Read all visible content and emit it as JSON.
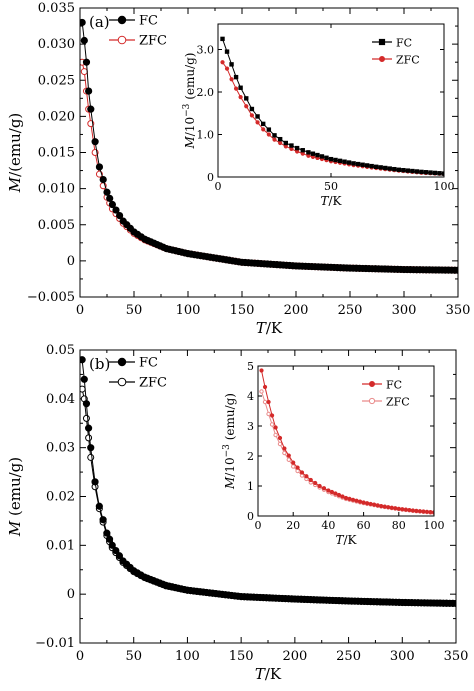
{
  "chart_data": [
    {
      "id": "a-main",
      "type": "scatter",
      "panel_label": "(a)",
      "xlabel": "T/K",
      "ylabel": "M/(emu/g)",
      "xlim": [
        0,
        350
      ],
      "ylim": [
        -0.005,
        0.035
      ],
      "xticks": [
        0,
        50,
        100,
        150,
        200,
        250,
        300,
        350
      ],
      "yticks": [
        -0.005,
        0,
        0.005,
        0.01,
        0.015,
        0.02,
        0.025,
        0.03,
        0.035
      ],
      "xtick_labels": [
        "0",
        "50",
        "100",
        "150",
        "200",
        "250",
        "300",
        "350"
      ],
      "ytick_labels": [
        "−0.005",
        "0",
        "0.005",
        "0.010",
        "0.015",
        "0.020",
        "0.025",
        "0.030",
        "0.035"
      ],
      "legend_position": "top-left",
      "series": [
        {
          "name": "FC",
          "color": "#000000",
          "marker": "filled-circle",
          "x": [
            2,
            4,
            6,
            8,
            10,
            14,
            18,
            25,
            30,
            40,
            50,
            60,
            80,
            100,
            150,
            200,
            250,
            300,
            350
          ],
          "y": [
            0.033,
            0.0305,
            0.0275,
            0.0235,
            0.021,
            0.0165,
            0.013,
            0.0095,
            0.0078,
            0.0055,
            0.004,
            0.003,
            0.0017,
            0.001,
            -0.0002,
            -0.0007,
            -0.001,
            -0.0012,
            -0.0013
          ]
        },
        {
          "name": "ZFC",
          "color": "#d42a2a",
          "marker": "open-circle",
          "x": [
            2,
            4,
            6,
            8,
            10,
            14,
            18,
            25,
            30,
            40,
            50,
            60,
            80,
            100,
            150,
            200,
            250,
            300,
            350
          ],
          "y": [
            0.0275,
            0.0262,
            0.0235,
            0.021,
            0.019,
            0.015,
            0.012,
            0.0088,
            0.0072,
            0.0052,
            0.0038,
            0.0029,
            0.0017,
            0.001,
            -0.0002,
            -0.0007,
            -0.001,
            -0.0012,
            -0.0013
          ]
        }
      ]
    },
    {
      "id": "a-inset",
      "type": "line",
      "xlabel": "T/K",
      "ylabel": "M/10⁻³ (emu/g)",
      "xlim": [
        0,
        100
      ],
      "ylim": [
        0,
        3.6
      ],
      "xticks": [
        0,
        50,
        100
      ],
      "yticks": [
        0,
        1,
        2,
        3
      ],
      "xtick_labels": [
        "0",
        "50",
        "100"
      ],
      "ytick_labels": [
        "0",
        "1.0",
        "2.0",
        "3.0"
      ],
      "legend_position": "top-right",
      "series": [
        {
          "name": "FC",
          "color": "#000000",
          "marker": "square",
          "x": [
            2,
            4,
            6,
            8,
            10,
            15,
            20,
            25,
            30,
            35,
            40,
            50,
            60,
            70,
            80,
            90,
            100
          ],
          "y": [
            3.25,
            2.95,
            2.65,
            2.35,
            2.1,
            1.6,
            1.25,
            0.98,
            0.8,
            0.68,
            0.58,
            0.42,
            0.32,
            0.24,
            0.17,
            0.12,
            0.08
          ]
        },
        {
          "name": "ZFC",
          "color": "#d42a2a",
          "marker": "filled-circle",
          "x": [
            2,
            4,
            6,
            8,
            10,
            15,
            20,
            25,
            30,
            35,
            40,
            50,
            60,
            70,
            80,
            90,
            100
          ],
          "y": [
            2.7,
            2.55,
            2.3,
            2.08,
            1.88,
            1.45,
            1.12,
            0.88,
            0.72,
            0.6,
            0.5,
            0.37,
            0.28,
            0.21,
            0.15,
            0.1,
            0.07
          ]
        }
      ]
    },
    {
      "id": "b-main",
      "type": "scatter",
      "panel_label": "(b)",
      "xlabel": "T/K",
      "ylabel": "M (emu/g)",
      "xlim": [
        0,
        350
      ],
      "ylim": [
        -0.01,
        0.05
      ],
      "xticks": [
        0,
        50,
        100,
        150,
        200,
        250,
        300,
        350
      ],
      "yticks": [
        -0.01,
        0,
        0.01,
        0.02,
        0.03,
        0.04,
        0.05
      ],
      "xtick_labels": [
        "0",
        "50",
        "100",
        "150",
        "200",
        "250",
        "300",
        "350"
      ],
      "ytick_labels": [
        "−0.01",
        "0",
        "0.01",
        "0.02",
        "0.03",
        "0.04",
        "0.05"
      ],
      "legend_position": "top-left",
      "series": [
        {
          "name": "FC",
          "color": "#000000",
          "marker": "filled-circle",
          "x": [
            2,
            4,
            6,
            8,
            10,
            14,
            18,
            25,
            30,
            40,
            50,
            60,
            80,
            100,
            150,
            200,
            250,
            300,
            350
          ],
          "y": [
            0.048,
            0.044,
            0.039,
            0.034,
            0.03,
            0.023,
            0.018,
            0.0125,
            0.01,
            0.0068,
            0.0048,
            0.0035,
            0.0018,
            0.0008,
            -0.0005,
            -0.001,
            -0.0014,
            -0.0017,
            -0.0019
          ]
        },
        {
          "name": "ZFC",
          "color": "#000000",
          "marker": "open-circle",
          "x": [
            2,
            4,
            6,
            8,
            10,
            14,
            18,
            25,
            30,
            40,
            50,
            60,
            80,
            100,
            150,
            200,
            250,
            300,
            350
          ],
          "y": [
            0.042,
            0.04,
            0.036,
            0.032,
            0.028,
            0.022,
            0.0175,
            0.012,
            0.0095,
            0.0065,
            0.0046,
            0.0034,
            0.0017,
            0.0008,
            -0.0005,
            -0.001,
            -0.0014,
            -0.0017,
            -0.0019
          ]
        }
      ]
    },
    {
      "id": "b-inset",
      "type": "line",
      "xlabel": "T/K",
      "ylabel": "M/10⁻³ (emu/g)",
      "xlim": [
        0,
        100
      ],
      "ylim": [
        0,
        5
      ],
      "xticks": [
        0,
        20,
        40,
        60,
        80,
        100
      ],
      "yticks": [
        0,
        1,
        2,
        3,
        4,
        5
      ],
      "xtick_labels": [
        "0",
        "20",
        "40",
        "60",
        "80",
        "100"
      ],
      "ytick_labels": [
        "0",
        "1",
        "2",
        "3",
        "4",
        "5"
      ],
      "legend_position": "top-right",
      "series": [
        {
          "name": "FC",
          "color": "#d42a2a",
          "marker": "filled-circle",
          "x": [
            2,
            4,
            6,
            8,
            10,
            15,
            20,
            25,
            30,
            35,
            40,
            50,
            60,
            70,
            80,
            90,
            100
          ],
          "y": [
            4.85,
            4.3,
            3.8,
            3.35,
            2.95,
            2.25,
            1.78,
            1.45,
            1.2,
            1.0,
            0.85,
            0.6,
            0.45,
            0.33,
            0.24,
            0.17,
            0.12
          ]
        },
        {
          "name": "ZFC",
          "color": "#e98b8b",
          "marker": "open-circle",
          "x": [
            2,
            4,
            6,
            8,
            10,
            15,
            20,
            25,
            30,
            35,
            40,
            50,
            60,
            70,
            80,
            90,
            100
          ],
          "y": [
            4.15,
            3.8,
            3.4,
            3.05,
            2.7,
            2.1,
            1.65,
            1.35,
            1.12,
            0.95,
            0.8,
            0.57,
            0.43,
            0.32,
            0.23,
            0.16,
            0.11
          ]
        }
      ]
    }
  ]
}
